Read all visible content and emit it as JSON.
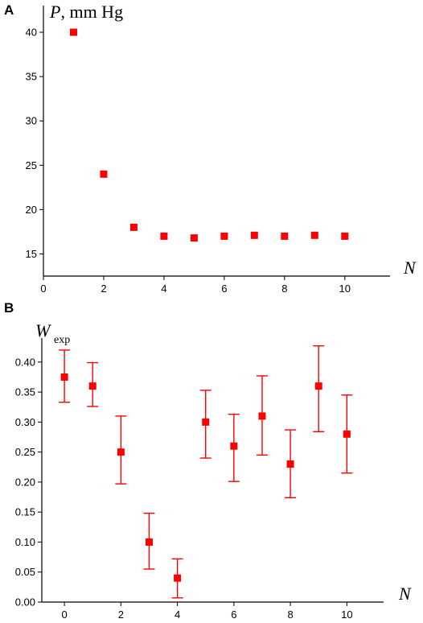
{
  "chart_data": [
    {
      "panel": "A",
      "type": "scatter",
      "ylabel_var": "P",
      "ylabel_unit": ", mm Hg",
      "xlabel": "N",
      "xlim": [
        0,
        11.5
      ],
      "ylim": [
        12.5,
        43
      ],
      "xticks": [
        0,
        2,
        4,
        6,
        8,
        10
      ],
      "yticks": [
        15,
        20,
        25,
        30,
        35,
        40
      ],
      "color": "#ff0000",
      "points": [
        {
          "x": 1,
          "y": 40
        },
        {
          "x": 2,
          "y": 24
        },
        {
          "x": 3,
          "y": 18
        },
        {
          "x": 4,
          "y": 17
        },
        {
          "x": 5,
          "y": 16.8
        },
        {
          "x": 6,
          "y": 17
        },
        {
          "x": 7,
          "y": 17.1
        },
        {
          "x": 8,
          "y": 17
        },
        {
          "x": 9,
          "y": 17.1
        },
        {
          "x": 10,
          "y": 17
        }
      ]
    },
    {
      "panel": "B",
      "type": "scatter",
      "ylabel_var": "W",
      "ylabel_sub": "exp",
      "xlabel": "N",
      "xlim": [
        -0.8,
        11.3
      ],
      "ylim": [
        0,
        0.44
      ],
      "xticks": [
        0,
        2,
        4,
        6,
        8,
        10
      ],
      "yticks": [
        "0.00",
        "0.05",
        "0.10",
        "0.15",
        "0.20",
        "0.25",
        "0.30",
        "0.35",
        "0.40"
      ],
      "color": "#ff0000",
      "points": [
        {
          "x": 0,
          "y": 0.375,
          "lo": 0.333,
          "hi": 0.42
        },
        {
          "x": 1,
          "y": 0.36,
          "lo": 0.326,
          "hi": 0.399
        },
        {
          "x": 2,
          "y": 0.25,
          "lo": 0.197,
          "hi": 0.31
        },
        {
          "x": 3,
          "y": 0.1,
          "lo": 0.055,
          "hi": 0.148
        },
        {
          "x": 4,
          "y": 0.04,
          "lo": 0.007,
          "hi": 0.072
        },
        {
          "x": 5,
          "y": 0.3,
          "lo": 0.24,
          "hi": 0.353
        },
        {
          "x": 6,
          "y": 0.26,
          "lo": 0.201,
          "hi": 0.313
        },
        {
          "x": 7,
          "y": 0.31,
          "lo": 0.245,
          "hi": 0.377
        },
        {
          "x": 8,
          "y": 0.23,
          "lo": 0.174,
          "hi": 0.287
        },
        {
          "x": 9,
          "y": 0.36,
          "lo": 0.284,
          "hi": 0.427
        },
        {
          "x": 10,
          "y": 0.28,
          "lo": 0.215,
          "hi": 0.345
        }
      ]
    }
  ]
}
